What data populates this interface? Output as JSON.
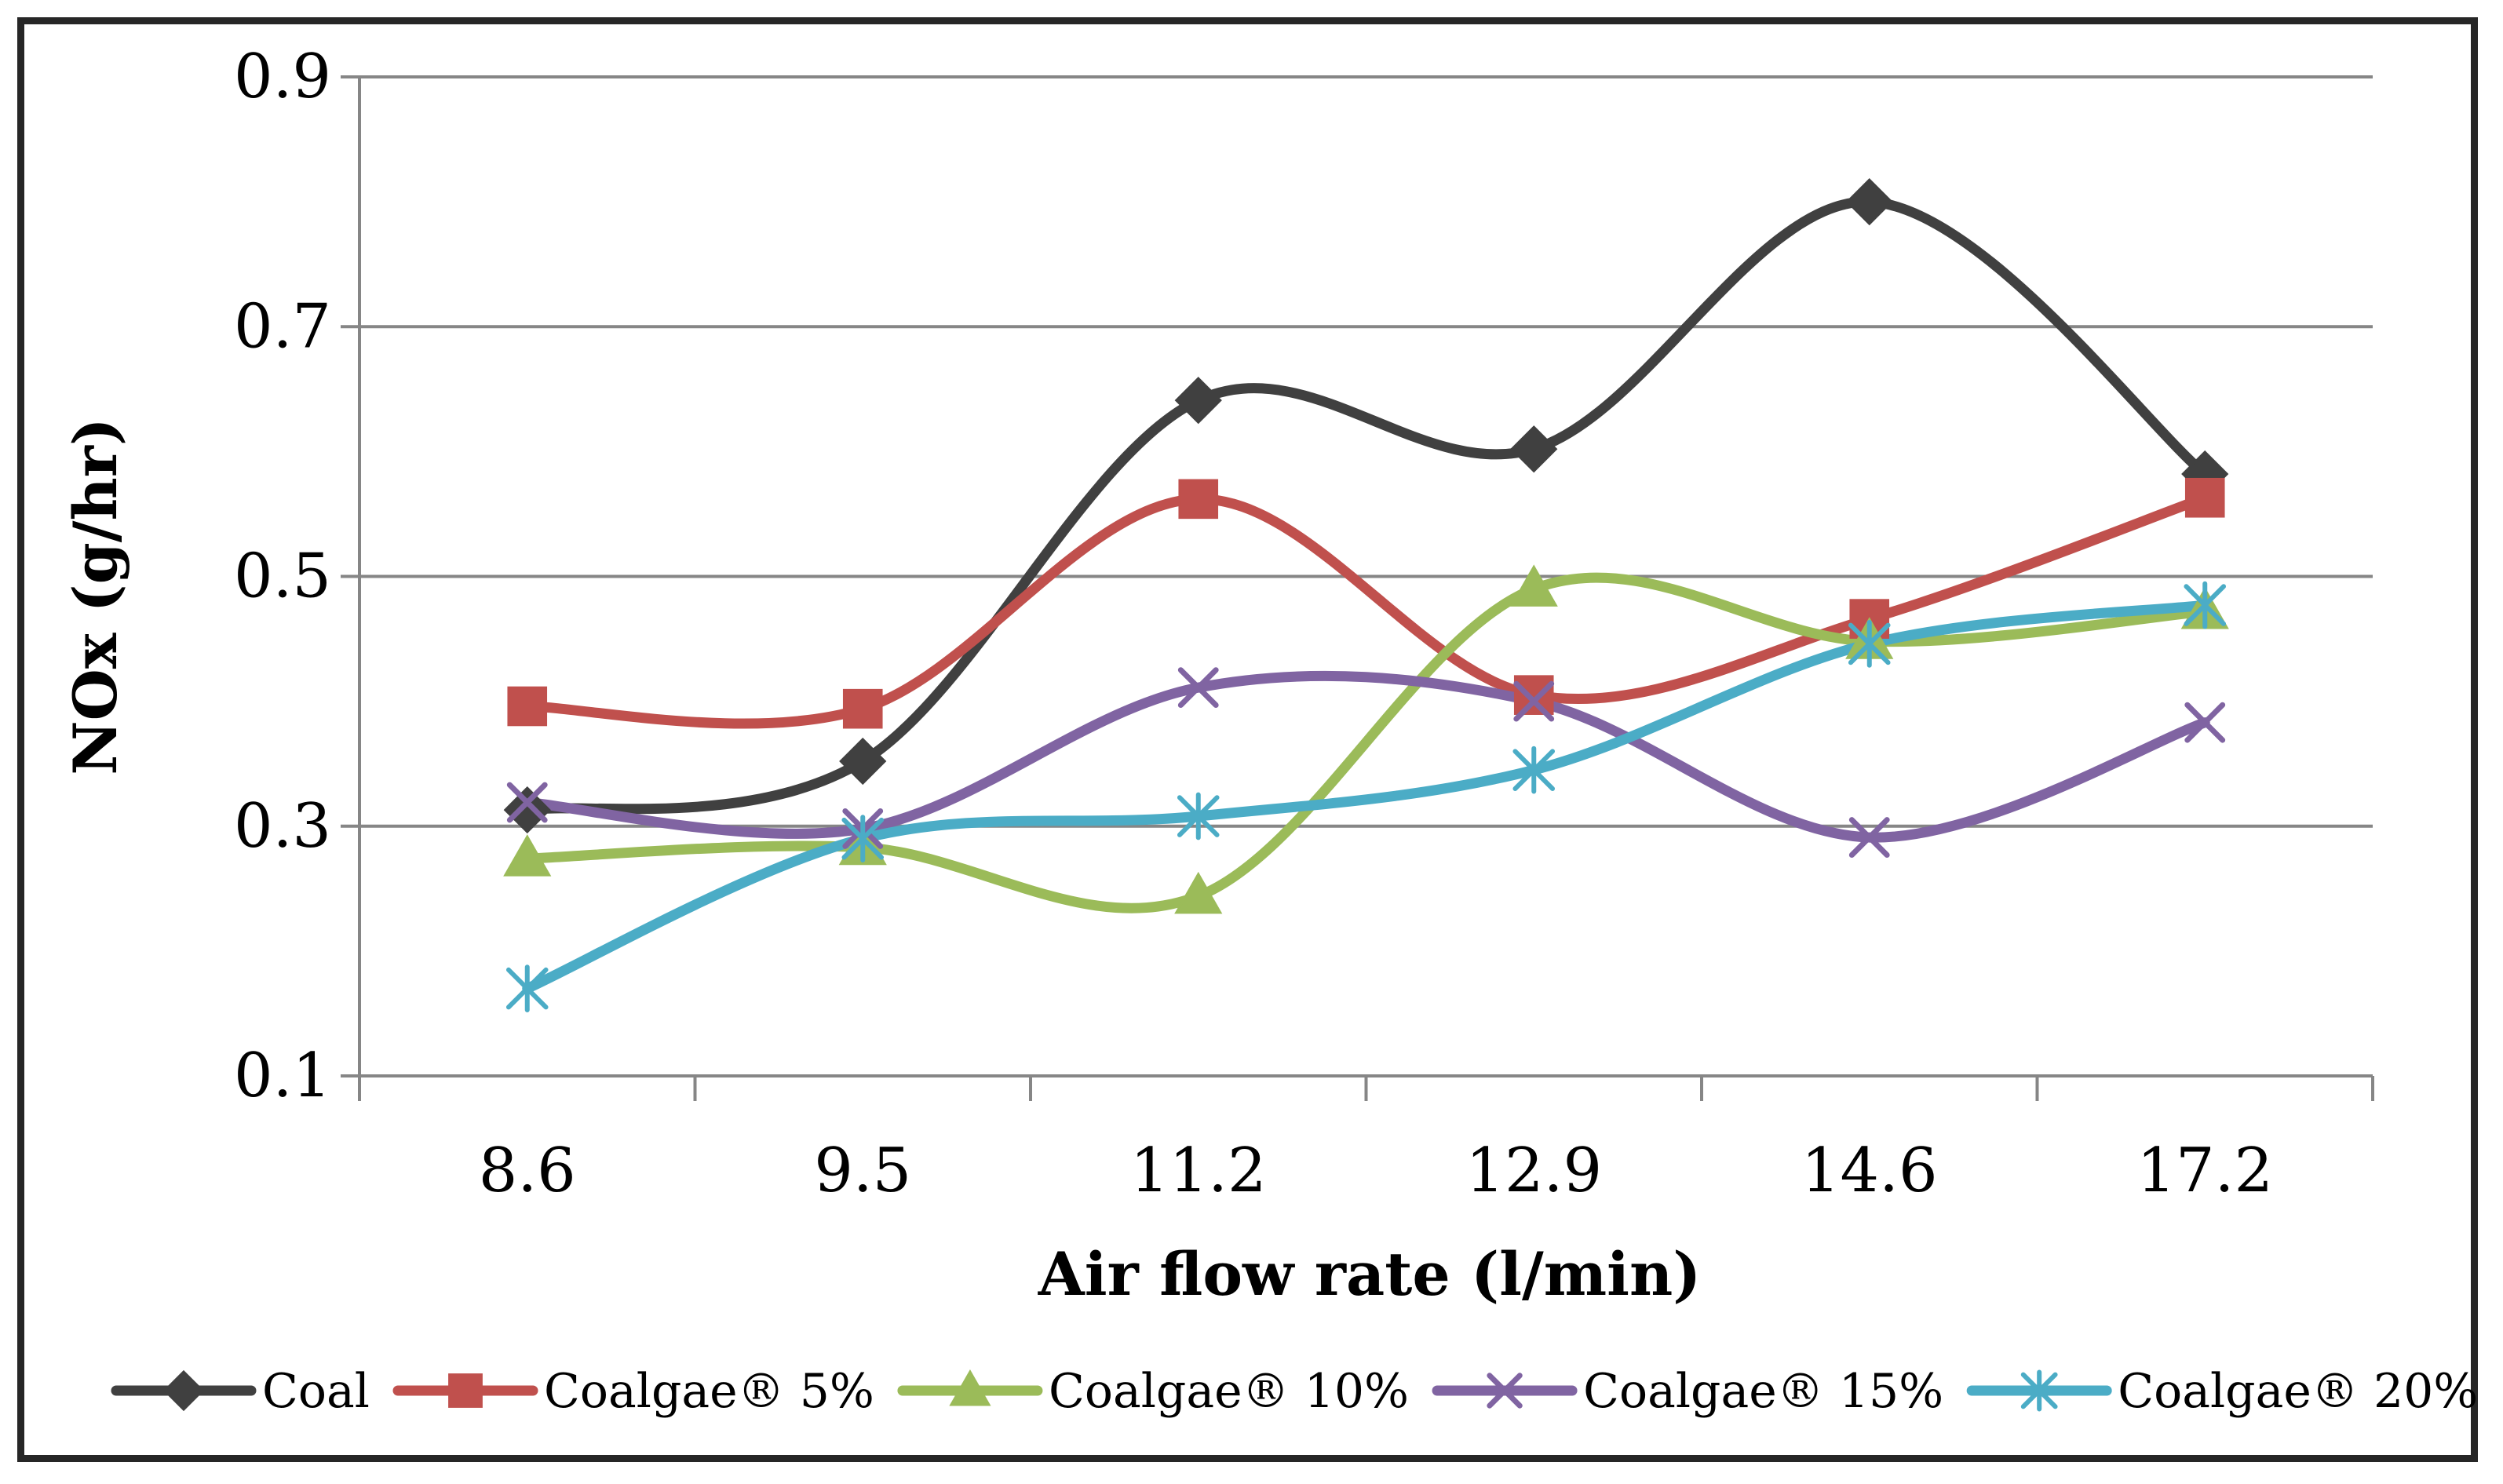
{
  "chart_data": {
    "type": "line",
    "title": "",
    "xlabel": "Air flow rate (l/min)",
    "ylabel": "NOx (g/hr)",
    "categories": [
      "8.6",
      "9.5",
      "11.2",
      "12.9",
      "14.6",
      "17.2"
    ],
    "ylim": [
      0.1,
      0.9
    ],
    "yticks": [
      "0.9",
      "0.7",
      "0.5",
      "0.3",
      "0.1"
    ],
    "ytick_values": [
      0.9,
      0.7,
      0.5,
      0.3,
      0.1
    ],
    "grid": true,
    "legend_position": "bottom",
    "series": [
      {
        "name": "Coal",
        "color": "#404040",
        "marker": "diamond",
        "values": [
          0.313,
          0.352,
          0.641,
          0.602,
          0.8,
          0.582
        ]
      },
      {
        "name": "Coalgae® 5%",
        "color": "#C0504D",
        "marker": "square",
        "values": [
          0.396,
          0.394,
          0.562,
          0.405,
          0.466,
          0.563
        ]
      },
      {
        "name": "Coalgae® 10%",
        "color": "#9BBB59",
        "marker": "triangle",
        "values": [
          0.274,
          0.283,
          0.244,
          0.49,
          0.448,
          0.472
        ]
      },
      {
        "name": "Coalgae® 15%",
        "color": "#8064A2",
        "marker": "x",
        "values": [
          0.319,
          0.298,
          0.411,
          0.4,
          0.291,
          0.383
        ]
      },
      {
        "name": "Coalgae® 20%",
        "color": "#4BACC6",
        "marker": "asterisk",
        "values": [
          0.17,
          0.29,
          0.308,
          0.345,
          0.446,
          0.477
        ]
      }
    ]
  }
}
